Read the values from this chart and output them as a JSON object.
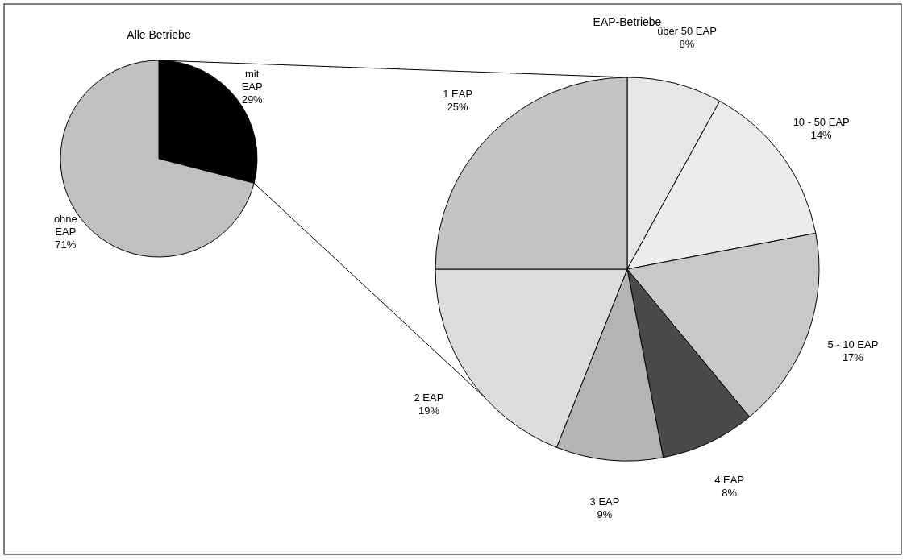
{
  "chart_data": [
    {
      "type": "pie",
      "title": "Alle Betriebe",
      "categories": [
        "mit EAP",
        "ohne EAP"
      ],
      "values": [
        29,
        71
      ],
      "colors": [
        "#000000",
        "#c0c0c0"
      ],
      "value_labels": [
        "29%",
        "71%"
      ]
    },
    {
      "type": "pie",
      "title": "EAP-Betriebe",
      "categories": [
        "über 50 EAP",
        "10 - 50 EAP",
        "5 - 10 EAP",
        "4 EAP",
        "3 EAP",
        "2 EAP",
        "1 EAP"
      ],
      "values": [
        8,
        14,
        17,
        8,
        9,
        19,
        25
      ],
      "colors": [
        "#e6e6e6",
        "#ececec",
        "#c8c8c8",
        "#4a4a4a",
        "#b4b4b4",
        "#dcdcdc",
        "#c4c4c4"
      ],
      "value_labels": [
        "8%",
        "14%",
        "17%",
        "8%",
        "9%",
        "19%",
        "25%"
      ]
    }
  ]
}
